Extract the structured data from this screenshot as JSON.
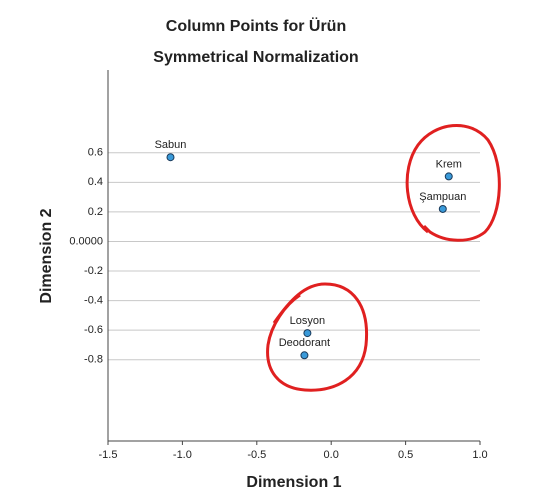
{
  "chart_data": {
    "type": "scatter",
    "title": "Column Points for Ürün",
    "subtitle": "Symmetrical Normalization",
    "x_label": "Dimension 1",
    "y_label": "Dimension 2",
    "categories": [
      "Sabun",
      "Krem",
      "Şampuan",
      "Losyon",
      "Deodorant"
    ],
    "x": [
      -1.08,
      0.79,
      0.75,
      -0.16,
      -0.18
    ],
    "values": [
      0.57,
      0.44,
      0.22,
      -0.62,
      -0.77
    ],
    "color": "#3a9ad9",
    "xlim": [
      -1.5,
      1.0
    ],
    "ylim": [
      -1.35,
      1.16
    ],
    "xticks": [
      -1.5,
      {
        "value": -1,
        "label": "-1.0"
      },
      -0.5,
      {
        "value": 0,
        "label": "0.0"
      },
      0.5,
      {
        "value": 1,
        "label": "1.0"
      }
    ],
    "yticks": [
      0.6,
      0.4,
      0.2,
      {
        "value": 0,
        "label": "0.0000"
      },
      -0.2,
      -0.4,
      -0.6,
      -0.8
    ],
    "grid": true
  }
}
